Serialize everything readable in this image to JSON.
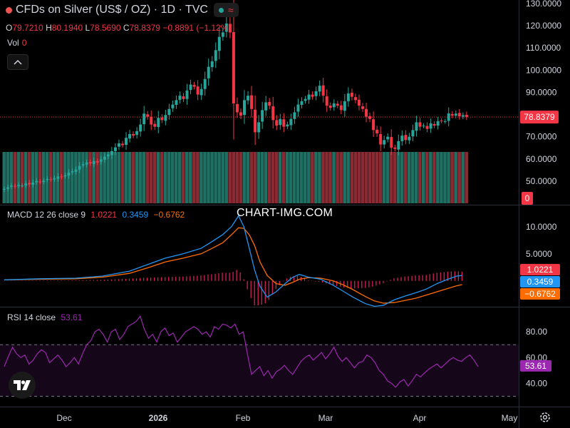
{
  "header": {
    "title": "CFDs on Silver (US$ / OZ) · 1D · TVC",
    "pill_wave": "≈"
  },
  "ohlc": {
    "o_label": "O",
    "o": "79.7210",
    "h_label": "H",
    "h": "80.1940",
    "l_label": "L",
    "l": "78.5690",
    "c_label": "C",
    "c": "78.8379",
    "change": "−0.8891 (−1.12%)"
  },
  "volume": {
    "label": "Vol",
    "value": "0"
  },
  "watermark": "CHART-IMG.COM",
  "colors": {
    "up": "#26a69a",
    "down": "#f23645",
    "macd": "#2196f3",
    "signal": "#ff6d00",
    "hist": "#e91e63",
    "rsi": "#9c27b0",
    "price_line": "#f23645"
  },
  "icons": [
    "collapse-chevron-icon",
    "tradingview-logo-icon",
    "settings-gear-icon"
  ],
  "chart_data": [
    {
      "type": "candlestick",
      "title": "CFDs on Silver (US$ / OZ) · 1D · TVC",
      "ylim": [
        40,
        130
      ],
      "y_ticks": [
        "130.0000",
        "120.0000",
        "110.0000",
        "100.0000",
        "90.0000",
        "80.0000",
        "70.0000",
        "60.0000",
        "50.0000"
      ],
      "last_price_label": "78.8379",
      "volume_label": "0",
      "x_ticks": [
        "Dec",
        "2026",
        "Feb",
        "Mar",
        "Apr",
        "May"
      ],
      "close": [
        46.5,
        47.2,
        48.0,
        47.6,
        48.3,
        48.0,
        48.9,
        48.5,
        49.3,
        50.1,
        49.6,
        50.2,
        51.0,
        50.6,
        51.3,
        52.1,
        51.8,
        52.6,
        53.8,
        54.5,
        55.2,
        56.8,
        57.6,
        58.4,
        58.0,
        59.0,
        58.4,
        59.8,
        61.0,
        62.0,
        63.5,
        65.2,
        67.0,
        66.2,
        69.5,
        71.2,
        70.5,
        72.5,
        75.5,
        80.4,
        79.0,
        75.5,
        74.5,
        78.5,
        77.5,
        79.8,
        82.5,
        84.5,
        86.5,
        88.5,
        87.0,
        90.8,
        93.5,
        92.5,
        89.0,
        91.5,
        96.0,
        101.5,
        104.0,
        109.0,
        115.0,
        117.0,
        121.0,
        117.0,
        85.0,
        81.0,
        79.5,
        86.5,
        88.5,
        82.5,
        72.0,
        76.5,
        82.0,
        85.5,
        84.0,
        77.5,
        75.0,
        78.0,
        74.5,
        75.5,
        78.0,
        81.0,
        84.5,
        86.0,
        87.0,
        89.0,
        88.0,
        90.5,
        93.0,
        88.5,
        84.0,
        83.0,
        85.0,
        84.0,
        82.0,
        86.0,
        89.5,
        88.0,
        86.5,
        84.0,
        82.5,
        79.0,
        78.0,
        73.0,
        71.5,
        66.5,
        68.5,
        70.0,
        65.0,
        64.5,
        68.0,
        70.5,
        68.5,
        70.0,
        73.0,
        76.5,
        74.5,
        75.0,
        73.5,
        76.0,
        75.0,
        77.0,
        77.0,
        77.0,
        80.5,
        79.5,
        80.4,
        79.2,
        79.72,
        78.84
      ]
    },
    {
      "type": "line",
      "title": "MACD 12 26 close 9",
      "legend_values": [
        "1.0221",
        "0.3459",
        "−0.6762"
      ],
      "series": [
        {
          "name": "MACD",
          "color": "#2196f3",
          "points": [
            [
              0,
              0.2
            ],
            [
              20,
              0.4
            ],
            [
              40,
              0.5
            ],
            [
              55,
              0.9
            ],
            [
              70,
              1.8
            ],
            [
              80,
              3.0
            ],
            [
              90,
              4.2
            ],
            [
              100,
              5.0
            ],
            [
              110,
              6.0
            ],
            [
              115,
              7.0
            ],
            [
              122,
              8.5
            ],
            [
              127,
              10.0
            ],
            [
              131,
              12.0
            ],
            [
              134,
              10.0
            ],
            [
              137,
              6.0
            ],
            [
              140,
              2.0
            ],
            [
              143,
              -1.0
            ],
            [
              147,
              -3.0
            ],
            [
              152,
              -2.0
            ],
            [
              157,
              -0.5
            ],
            [
              161,
              0.6
            ],
            [
              165,
              1.2
            ],
            [
              170,
              0.7
            ],
            [
              177,
              0.3
            ],
            [
              184,
              -0.8
            ],
            [
              190,
              -2.0
            ],
            [
              195,
              -3.0
            ],
            [
              202,
              -4.2
            ],
            [
              207,
              -4.7
            ],
            [
              212,
              -4.5
            ],
            [
              218,
              -3.5
            ],
            [
              224,
              -2.8
            ],
            [
              230,
              -2.2
            ],
            [
              236,
              -1.5
            ],
            [
              242,
              -0.5
            ],
            [
              248,
              0.3
            ],
            [
              253,
              0.9
            ],
            [
              256,
              1.0
            ]
          ]
        },
        {
          "name": "Signal",
          "color": "#ff6d00",
          "points": [
            [
              0,
              0.2
            ],
            [
              20,
              0.3
            ],
            [
              40,
              0.4
            ],
            [
              55,
              0.7
            ],
            [
              70,
              1.4
            ],
            [
              80,
              2.4
            ],
            [
              90,
              3.5
            ],
            [
              100,
              4.2
            ],
            [
              110,
              5.0
            ],
            [
              115,
              5.8
            ],
            [
              122,
              7.0
            ],
            [
              127,
              8.5
            ],
            [
              131,
              9.8
            ],
            [
              134,
              9.7
            ],
            [
              137,
              8.5
            ],
            [
              140,
              6.5
            ],
            [
              143,
              3.5
            ],
            [
              147,
              1.0
            ],
            [
              152,
              -0.5
            ],
            [
              157,
              -0.8
            ],
            [
              161,
              -0.3
            ],
            [
              165,
              0.3
            ],
            [
              170,
              0.6
            ],
            [
              177,
              0.5
            ],
            [
              184,
              0.0
            ],
            [
              190,
              -0.8
            ],
            [
              195,
              -1.6
            ],
            [
              202,
              -2.9
            ],
            [
              207,
              -3.7
            ],
            [
              212,
              -4.1
            ],
            [
              218,
              -4.0
            ],
            [
              224,
              -3.6
            ],
            [
              230,
              -3.2
            ],
            [
              236,
              -2.6
            ],
            [
              242,
              -2.0
            ],
            [
              248,
              -1.4
            ],
            [
              253,
              -0.9
            ],
            [
              256,
              -0.68
            ]
          ]
        },
        {
          "name": "Histogram",
          "color": "#e91e63",
          "points": []
        }
      ],
      "ylim": [
        -4.5,
        13
      ],
      "y_ticks": [
        "10.0000",
        "5.0000"
      ]
    },
    {
      "type": "line",
      "title": "RSI 14 close",
      "legend_value": "53.61",
      "ylim": [
        22,
        95
      ],
      "bands": [
        30,
        70
      ],
      "y_ticks": [
        "80.00",
        "60.00",
        "40.00"
      ],
      "series": [
        {
          "name": "RSI",
          "color": "#9c27b0",
          "values": [
            53,
            61,
            68,
            63,
            60,
            62,
            55,
            58,
            63,
            66,
            64,
            56,
            59,
            62,
            58,
            53,
            56,
            60,
            55,
            63,
            70,
            73,
            80,
            82,
            78,
            72,
            80,
            82,
            74,
            78,
            84,
            86,
            88,
            92,
            82,
            75,
            78,
            72,
            80,
            83,
            77,
            79,
            72,
            76,
            80,
            82,
            84,
            82,
            78,
            80,
            76,
            84,
            82,
            86,
            85,
            83,
            86,
            78,
            80,
            63,
            47,
            50,
            53,
            46,
            50,
            44,
            49,
            51,
            54,
            50,
            47,
            52,
            57,
            60,
            62,
            58,
            61,
            64,
            59,
            63,
            68,
            61,
            57,
            60,
            56,
            52,
            56,
            57,
            62,
            60,
            56,
            50,
            47,
            42,
            40,
            37,
            41,
            43,
            38,
            42,
            47,
            45,
            48,
            51,
            53,
            55,
            52,
            55,
            58,
            60,
            58,
            57,
            60,
            62,
            58,
            53
          ]
        }
      ]
    }
  ]
}
